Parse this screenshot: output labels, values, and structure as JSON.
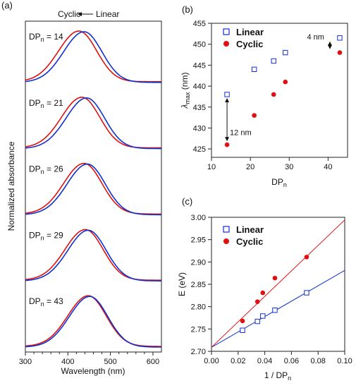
{
  "chart_data": [
    {
      "panel": "(a)",
      "type": "line",
      "xlabel": "Wavelength (nm)",
      "ylabel": "Normalized absorbance",
      "xlim": [
        300,
        620
      ],
      "xticks": [
        300,
        400,
        500,
        600
      ],
      "header": {
        "cyclic": "Cyclic",
        "linear": "Linear"
      },
      "series_colors": {
        "cyclic": "#e01010",
        "linear": "#1030d0"
      },
      "spectra": [
        {
          "label_text": "DP",
          "label_sub": "n",
          "label_val": " = 14",
          "lambda_cyclic": 426,
          "lambda_linear": 438
        },
        {
          "label_text": "DP",
          "label_sub": "n",
          "label_val": " = 21",
          "lambda_cyclic": 433,
          "lambda_linear": 444
        },
        {
          "label_text": "DP",
          "label_sub": "n",
          "label_val": " = 26",
          "lambda_cyclic": 438,
          "lambda_linear": 446
        },
        {
          "label_text": "DP",
          "label_sub": "n",
          "label_val": " = 29",
          "lambda_cyclic": 441,
          "lambda_linear": 448
        },
        {
          "label_text": "DP",
          "label_sub": "n",
          "label_val": " = 43",
          "lambda_cyclic": 448,
          "lambda_linear": 451.5
        }
      ]
    },
    {
      "panel": "(b)",
      "type": "scatter",
      "xlabel": "DP",
      "xlabel_sub": "n",
      "ylabel": "λ",
      "ylabel_sub": "max",
      "ylabel_unit": " (nm)",
      "xlim": [
        10,
        45
      ],
      "ylim": [
        423,
        455
      ],
      "xticks": [
        10,
        20,
        30,
        40
      ],
      "yticks": [
        425,
        430,
        435,
        440,
        445,
        450,
        455
      ],
      "series": [
        {
          "name": "Linear",
          "marker": "open-square",
          "color": "#1030d0",
          "x": [
            14,
            21,
            26,
            29,
            43
          ],
          "y": [
            438,
            444,
            446,
            448,
            451.5
          ]
        },
        {
          "name": "Cyclic",
          "marker": "filled-circle",
          "color": "#e01010",
          "x": [
            14,
            21,
            26,
            29,
            43
          ],
          "y": [
            426,
            433,
            438,
            441,
            448
          ]
        }
      ],
      "annotations": [
        {
          "text": "12 nm",
          "x": 14,
          "y1": 426,
          "y2": 438
        },
        {
          "text": "4 nm",
          "x": 43,
          "y1": 448,
          "y2": 451.5
        }
      ]
    },
    {
      "panel": "(c)",
      "type": "scatter",
      "xlabel": "1 / DP",
      "xlabel_sub": "n",
      "ylabel": "E (eV)",
      "xlim": [
        0.0,
        0.1
      ],
      "ylim": [
        2.7,
        3.0
      ],
      "xticks": [
        0.0,
        0.02,
        0.04,
        0.06,
        0.08,
        0.1
      ],
      "xtick_labels": [
        "0.00",
        "0.02",
        "0.04",
        "0.06",
        "0.08",
        "0.10"
      ],
      "yticks": [
        2.7,
        2.75,
        2.8,
        2.85,
        2.9,
        2.95,
        3.0
      ],
      "ytick_labels": [
        "2.70",
        "2.75",
        "2.80",
        "2.85",
        "2.90",
        "2.95",
        "3.00"
      ],
      "series": [
        {
          "name": "Linear",
          "marker": "open-square",
          "color": "#1030d0",
          "x": [
            0.0233,
            0.0345,
            0.0385,
            0.0476,
            0.0714
          ],
          "y": [
            2.747,
            2.767,
            2.779,
            2.792,
            2.831
          ],
          "fit": {
            "intercept": 2.709,
            "slope": 1.72
          }
        },
        {
          "name": "Cyclic",
          "marker": "filled-circle",
          "color": "#e01010",
          "x": [
            0.0233,
            0.0345,
            0.0385,
            0.0476,
            0.0714
          ],
          "y": [
            2.768,
            2.811,
            2.831,
            2.864,
            2.911
          ],
          "fit": {
            "intercept": 2.709,
            "slope": 2.85
          }
        }
      ]
    }
  ]
}
